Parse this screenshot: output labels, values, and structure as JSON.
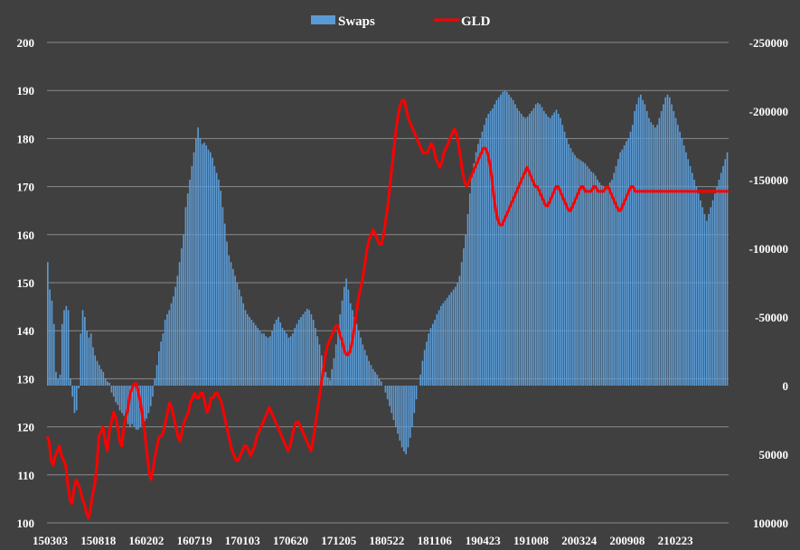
{
  "chart_data": {
    "type": "bar+line",
    "background": "#404040",
    "grid": true,
    "legend_position": "top-center",
    "series": [
      {
        "name": "Swaps",
        "type": "bar",
        "axis": "right",
        "color": "#5b9bd5",
        "values": [
          -90000,
          -70000,
          -62000,
          -45000,
          -10000,
          -5000,
          -8000,
          -45000,
          -55000,
          -58000,
          -55000,
          -5000,
          8000,
          20000,
          18000,
          2000,
          -38000,
          -55000,
          -50000,
          -40000,
          -35000,
          -38000,
          -28000,
          -22000,
          -18000,
          -15000,
          -12000,
          -10000,
          -5000,
          -3000,
          -2000,
          5000,
          8000,
          12000,
          14000,
          18000,
          20000,
          22000,
          25000,
          28000,
          30000,
          28000,
          30000,
          32000,
          32000,
          30000,
          28000,
          26000,
          24000,
          20000,
          15000,
          8000,
          -5000,
          -15000,
          -25000,
          -32000,
          -38000,
          -48000,
          -52000,
          -55000,
          -60000,
          -65000,
          -72000,
          -80000,
          -90000,
          -100000,
          -110000,
          -130000,
          -140000,
          -150000,
          -160000,
          -170000,
          -180000,
          -188000,
          -180000,
          -176000,
          -177000,
          -175000,
          -172000,
          -170000,
          -166000,
          -160000,
          -155000,
          -150000,
          -142000,
          -130000,
          -118000,
          -105000,
          -95000,
          -90000,
          -85000,
          -80000,
          -75000,
          -70000,
          -65000,
          -60000,
          -55000,
          -52000,
          -50000,
          -48000,
          -46000,
          -44000,
          -42000,
          -40000,
          -38000,
          -38000,
          -36000,
          -35000,
          -36000,
          -40000,
          -45000,
          -48000,
          -50000,
          -46000,
          -42000,
          -40000,
          -38000,
          -35000,
          -36000,
          -38000,
          -42000,
          -45000,
          -48000,
          -50000,
          -52000,
          -54000,
          -56000,
          -55000,
          -52000,
          -48000,
          -42000,
          -36000,
          -30000,
          -22000,
          -15000,
          -10000,
          -6000,
          -4000,
          -12000,
          -20000,
          -30000,
          -40000,
          -52000,
          -62000,
          -72000,
          -78000,
          -70000,
          -60000,
          -55000,
          -50000,
          -45000,
          -40000,
          -35000,
          -30000,
          -26000,
          -22000,
          -18000,
          -15000,
          -12000,
          -10000,
          -8000,
          -5000,
          -3000,
          0,
          5000,
          10000,
          15000,
          20000,
          25000,
          30000,
          35000,
          40000,
          45000,
          48000,
          50000,
          45000,
          38000,
          30000,
          20000,
          10000,
          0,
          -8000,
          -18000,
          -26000,
          -32000,
          -38000,
          -42000,
          -45000,
          -48000,
          -52000,
          -55000,
          -58000,
          -60000,
          -62000,
          -64000,
          -66000,
          -68000,
          -70000,
          -72000,
          -75000,
          -80000,
          -90000,
          -100000,
          -110000,
          -125000,
          -140000,
          -152000,
          -162000,
          -170000,
          -176000,
          -180000,
          -185000,
          -190000,
          -195000,
          -198000,
          -200000,
          -202000,
          -205000,
          -208000,
          -210000,
          -212000,
          -214000,
          -215000,
          -214000,
          -212000,
          -210000,
          -208000,
          -205000,
          -202000,
          -200000,
          -198000,
          -196000,
          -195000,
          -196000,
          -198000,
          -200000,
          -202000,
          -205000,
          -206000,
          -205000,
          -203000,
          -200000,
          -198000,
          -196000,
          -195000,
          -197000,
          -199000,
          -201000,
          -198000,
          -195000,
          -190000,
          -185000,
          -180000,
          -176000,
          -173000,
          -170000,
          -168000,
          -166000,
          -165000,
          -164000,
          -163000,
          -162000,
          -160000,
          -158000,
          -156000,
          -155000,
          -153000,
          -150000,
          -148000,
          -146000,
          -145000,
          -144000,
          -145000,
          -148000,
          -150000,
          -155000,
          -160000,
          -165000,
          -170000,
          -172000,
          -175000,
          -178000,
          -180000,
          -185000,
          -190000,
          -200000,
          -205000,
          -210000,
          -212000,
          -208000,
          -205000,
          -200000,
          -195000,
          -192000,
          -190000,
          -188000,
          -190000,
          -195000,
          -200000,
          -205000,
          -210000,
          -212000,
          -210000,
          -205000,
          -200000,
          -195000,
          -190000,
          -185000,
          -180000,
          -175000,
          -170000,
          -165000,
          -160000,
          -155000,
          -150000,
          -145000,
          -140000,
          -135000,
          -130000,
          -125000,
          -120000,
          -125000,
          -130000,
          -135000,
          -140000,
          -145000,
          -150000,
          -155000,
          -160000,
          -165000,
          -170000
        ]
      },
      {
        "name": "GLD",
        "type": "line",
        "axis": "left",
        "color": "#ff0000",
        "values": [
          118,
          117,
          113,
          112,
          114,
          115,
          116,
          114,
          113,
          112,
          108,
          105,
          104,
          107,
          109,
          108,
          107,
          105,
          104,
          102,
          101,
          103,
          106,
          108,
          112,
          118,
          119,
          120,
          117,
          115,
          119,
          121,
          123,
          122,
          120,
          117,
          116,
          120,
          122,
          124,
          127,
          128,
          129,
          129,
          127,
          125,
          122,
          119,
          115,
          111,
          109,
          111,
          114,
          116,
          118,
          118,
          119,
          121,
          123,
          125,
          124,
          122,
          120,
          118,
          117,
          119,
          121,
          122,
          123,
          125,
          126,
          127,
          126,
          126,
          127,
          127,
          125,
          123,
          124,
          126,
          126,
          127,
          127,
          126,
          125,
          123,
          121,
          119,
          117,
          115,
          114,
          113,
          113,
          114,
          115,
          116,
          116,
          115,
          114,
          115,
          116,
          118,
          119,
          120,
          121,
          122,
          123,
          124,
          123,
          122,
          121,
          120,
          119,
          118,
          117,
          116,
          115,
          116,
          118,
          120,
          121,
          121,
          120,
          119,
          118,
          117,
          116,
          115,
          117,
          120,
          123,
          126,
          129,
          132,
          135,
          137,
          138,
          139,
          140,
          141,
          141,
          139,
          138,
          136,
          135,
          135,
          136,
          138,
          141,
          144,
          147,
          149,
          151,
          154,
          157,
          159,
          160,
          161,
          160,
          159,
          158,
          158,
          160,
          163,
          166,
          170,
          174,
          178,
          182,
          185,
          187,
          188,
          188,
          186,
          184,
          183,
          182,
          181,
          180,
          179,
          178,
          177,
          177,
          177,
          178,
          179,
          178,
          176,
          175,
          174,
          175,
          177,
          178,
          179,
          180,
          181,
          182,
          181,
          179,
          176,
          173,
          171,
          170,
          171,
          172,
          173,
          174,
          175,
          176,
          177,
          178,
          178,
          177,
          175,
          172,
          168,
          165,
          163,
          162,
          162,
          163,
          164,
          165,
          166,
          167,
          168,
          169,
          170,
          171,
          172,
          173,
          174,
          173,
          172,
          171,
          170,
          170,
          169,
          168,
          167,
          166,
          166,
          167,
          168,
          169,
          170,
          170,
          169,
          168,
          167,
          166,
          165,
          165,
          166,
          167,
          168,
          169,
          170,
          170,
          169,
          169,
          169,
          169,
          170,
          170,
          169,
          169,
          169,
          169,
          170,
          170,
          169,
          168,
          167,
          166,
          165,
          165,
          166,
          167,
          168,
          169,
          170,
          170,
          169,
          169,
          169,
          169,
          169,
          169,
          169,
          169,
          169,
          169,
          169,
          169,
          169,
          169,
          169,
          169,
          169,
          169,
          169,
          169,
          169,
          169,
          169,
          169,
          169,
          169,
          169,
          169,
          169,
          169,
          169,
          169,
          169,
          169,
          169,
          169,
          169,
          169,
          169,
          169,
          169,
          169,
          169,
          169,
          169,
          169
        ]
      }
    ],
    "left_axis": {
      "min": 100,
      "max": 200,
      "ticks": [
        "200",
        "190",
        "180",
        "170",
        "160",
        "150",
        "140",
        "130",
        "120",
        "110",
        "100"
      ]
    },
    "right_axis": {
      "min": -250000,
      "max": 100000,
      "reversed": true,
      "ticks": [
        "-250000",
        "-200000",
        "-150000",
        "-100000",
        "-50000",
        "0",
        "50000",
        "100000"
      ]
    },
    "x_ticks": [
      "150303",
      "150818",
      "160202",
      "160719",
      "170103",
      "170620",
      "171205",
      "180522",
      "181106",
      "190423",
      "191008",
      "200324",
      "200908",
      "210223"
    ]
  }
}
